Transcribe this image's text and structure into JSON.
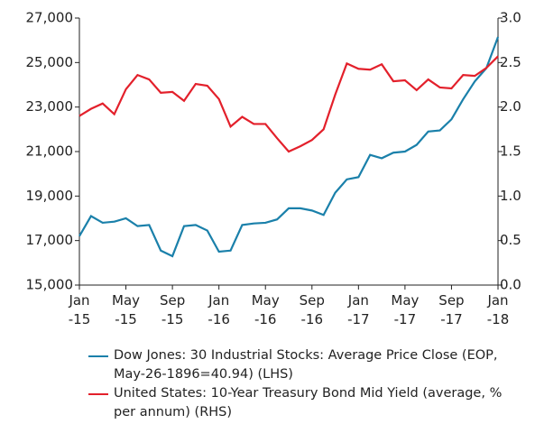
{
  "chart_data": {
    "type": "line",
    "categories": [
      "Jan -15",
      null,
      null,
      null,
      "May -15",
      null,
      null,
      null,
      "Sep -15",
      null,
      null,
      null,
      "Jan -16",
      null,
      null,
      null,
      "May -16",
      null,
      null,
      null,
      "Sep -16",
      null,
      null,
      null,
      "Jan -17",
      null,
      null,
      null,
      "May -17",
      null,
      null,
      null,
      "Sep -17",
      null,
      null,
      null,
      "Jan -18"
    ],
    "series": [
      {
        "name": "Dow Jones: 30 Industrial Stocks: Average Price Close (EOP, May-26-1896=40.94) (LHS)",
        "color": "#1a80aa",
        "axis": "y",
        "values": [
          17200,
          18100,
          17800,
          17850,
          18000,
          17650,
          17700,
          16550,
          16300,
          17650,
          17700,
          17450,
          16500,
          16550,
          17700,
          17770,
          17800,
          17950,
          18450,
          18450,
          18350,
          18150,
          19150,
          19750,
          19850,
          20850,
          20700,
          20950,
          21000,
          21300,
          21900,
          21950,
          22450,
          23350,
          24150,
          24750,
          26150
        ]
      },
      {
        "name": "United States: 10-Year Treasury Bond Mid Yield (average, % per annum) (RHS)",
        "color": "#e3202b",
        "axis": "y2",
        "values": [
          1.9,
          1.98,
          2.04,
          1.92,
          2.2,
          2.36,
          2.31,
          2.16,
          2.17,
          2.07,
          2.26,
          2.24,
          2.09,
          1.78,
          1.89,
          1.81,
          1.81,
          1.65,
          1.5,
          1.56,
          1.63,
          1.75,
          2.14,
          2.49,
          2.43,
          2.42,
          2.48,
          2.29,
          2.3,
          2.19,
          2.31,
          2.22,
          2.21,
          2.36,
          2.35,
          2.44,
          2.57
        ]
      }
    ],
    "ylim": [
      15000,
      27000
    ],
    "yticks": [
      {
        "value": 15000,
        "label": "15,000"
      },
      {
        "value": 17000,
        "label": "17,000"
      },
      {
        "value": 19000,
        "label": "19,000"
      },
      {
        "value": 21000,
        "label": "21,000"
      },
      {
        "value": 23000,
        "label": "23,000"
      },
      {
        "value": 25000,
        "label": "25,000"
      },
      {
        "value": 27000,
        "label": "27,000"
      }
    ],
    "y2lim": [
      0,
      3
    ],
    "y2ticks": [
      {
        "value": 0,
        "label": "0.0"
      },
      {
        "value": 0.5,
        "label": "0.5"
      },
      {
        "value": 1,
        "label": "1.0"
      },
      {
        "value": 1.5,
        "label": "1.5"
      },
      {
        "value": 2,
        "label": "2.0"
      },
      {
        "value": 2.5,
        "label": "2.5"
      },
      {
        "value": 3,
        "label": "3.0"
      }
    ],
    "legend": "bottom"
  }
}
